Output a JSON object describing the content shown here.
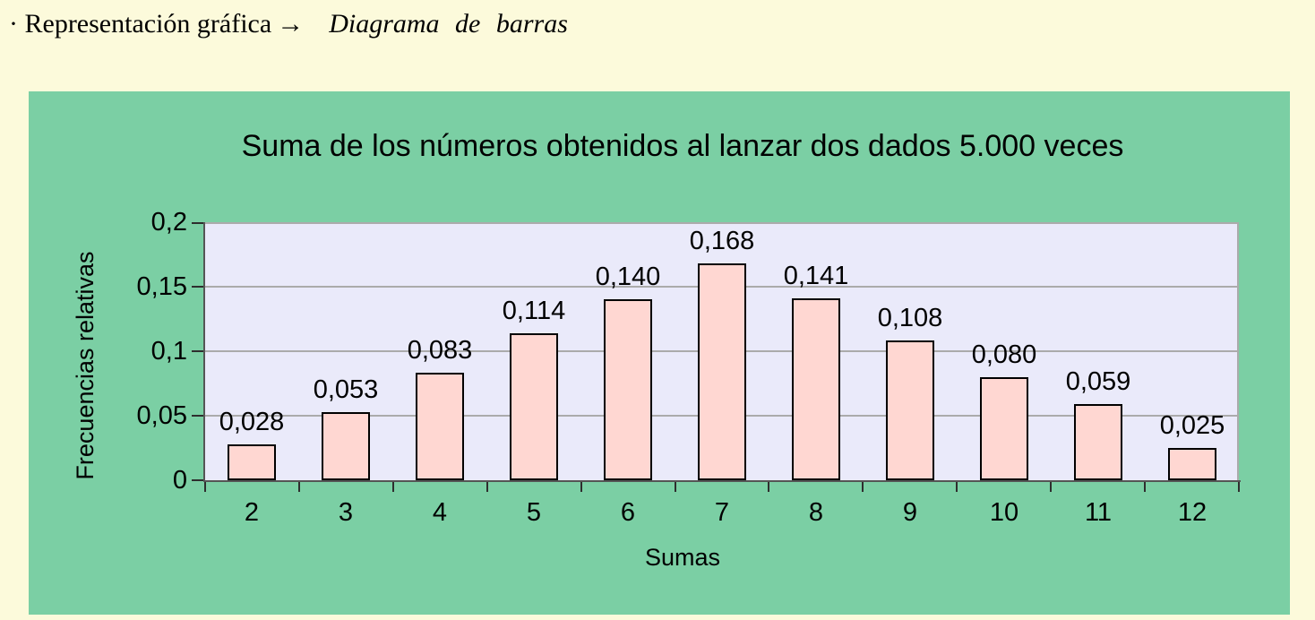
{
  "header": {
    "label": "· Representación gráfica",
    "arrow": "→",
    "value": "Diagrama de barras"
  },
  "chart_data": {
    "type": "bar",
    "title": "Suma de los números obtenidos al lanzar dos dados 5.000 veces",
    "xlabel": "Sumas",
    "ylabel": "Frecuencias relativas",
    "categories": [
      "2",
      "3",
      "4",
      "5",
      "6",
      "7",
      "8",
      "9",
      "10",
      "11",
      "12"
    ],
    "values": [
      0.028,
      0.053,
      0.083,
      0.114,
      0.14,
      0.168,
      0.141,
      0.108,
      0.08,
      0.059,
      0.025
    ],
    "bar_labels": [
      "0,028",
      "0,053",
      "0,083",
      "0,114",
      "0,140",
      "0,168",
      "0,141",
      "0,108",
      "0,080",
      "0,059",
      "0,025"
    ],
    "y_ticks": [
      {
        "value": 0,
        "label": "0"
      },
      {
        "value": 0.05,
        "label": "0,05"
      },
      {
        "value": 0.1,
        "label": "0,1"
      },
      {
        "value": 0.15,
        "label": "0,15"
      },
      {
        "value": 0.2,
        "label": "0,2"
      }
    ],
    "ylim": [
      0,
      0.2
    ],
    "grid": true,
    "legend": false,
    "colors": {
      "page_bg": "#FCFADB",
      "panel_bg": "#7BCFA4",
      "plot_bg": "#EAEAFA",
      "bar_fill": "#FFD7D2",
      "bar_border": "#000000",
      "gridline": "#ABABAB",
      "axis": "#555555",
      "text": "#000000"
    }
  }
}
